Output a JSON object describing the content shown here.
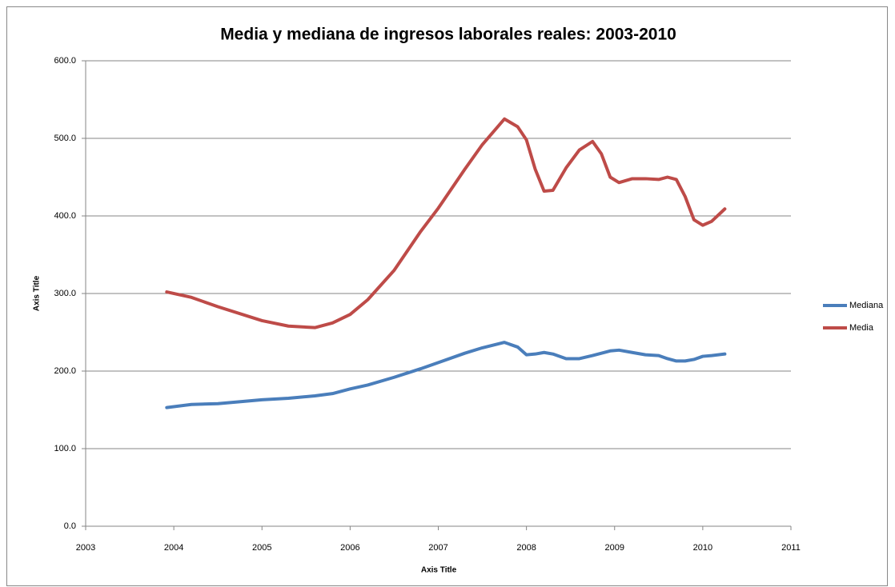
{
  "chart_data": {
    "type": "line",
    "title": "Media y mediana de ingresos laborales reales: 2003-2010",
    "x_label": "Axis Title",
    "y_label": "Axis Title",
    "x": [
      2003.92,
      2004.2,
      2004.5,
      2005,
      2005.3,
      2005.6,
      2005.8,
      2006,
      2006.2,
      2006.5,
      2006.8,
      2007,
      2007.3,
      2007.5,
      2007.75,
      2007.9,
      2008,
      2008.1,
      2008.2,
      2008.3,
      2008.45,
      2008.6,
      2008.75,
      2008.85,
      2008.95,
      2009.05,
      2009.2,
      2009.35,
      2009.5,
      2009.6,
      2009.7,
      2009.8,
      2009.9,
      2010,
      2010.1,
      2010.25
    ],
    "series": [
      {
        "name": "Mediana",
        "color": "#4a7ebb",
        "values": [
          153,
          157,
          158,
          163,
          165,
          168,
          171,
          177,
          182,
          192,
          203,
          211,
          223,
          230,
          237,
          231,
          221,
          222,
          224,
          222,
          216,
          216,
          220,
          223,
          226,
          227,
          224,
          221,
          220,
          216,
          213,
          213,
          215,
          219,
          220,
          222
        ]
      },
      {
        "name": "Media",
        "color": "#be4b48",
        "values": [
          302,
          295,
          283,
          265,
          258,
          256,
          262,
          273,
          292,
          330,
          380,
          410,
          460,
          492,
          525,
          515,
          498,
          460,
          432,
          433,
          462,
          485,
          496,
          480,
          450,
          443,
          448,
          448,
          447,
          450,
          447,
          425,
          395,
          388,
          393,
          409
        ]
      }
    ],
    "xlim": [
      2003,
      2011
    ],
    "xticks": [
      2003,
      2004,
      2005,
      2006,
      2007,
      2008,
      2009,
      2010,
      2011
    ],
    "ylim": [
      0,
      600
    ],
    "yticks": [
      {
        "value": 0,
        "label": "0.0"
      },
      {
        "value": 100,
        "label": "100.0"
      },
      {
        "value": 200,
        "label": "200.0"
      },
      {
        "value": 300,
        "label": "300.0"
      },
      {
        "value": 400,
        "label": "400.0"
      },
      {
        "value": 500,
        "label": "500.0"
      },
      {
        "value": 600,
        "label": "600.0"
      }
    ],
    "grid": true,
    "legend": "right"
  }
}
